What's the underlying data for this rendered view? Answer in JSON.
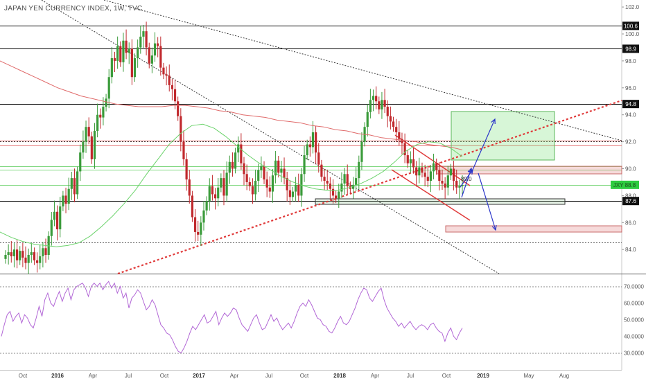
{
  "header": {
    "title": "JAPAN YEN CURRENCY INDEX, 1W, TVC"
  },
  "colors": {
    "up": "#3a9b3a",
    "down": "#c0282c",
    "ma_red": "#e06a6a",
    "ma_green": "#6bd36b",
    "rsi": "#b267d6",
    "trend_red": "#e03a3a",
    "arrow": "#2a35c9",
    "price_tag": "#2ecc40"
  },
  "chart_data": [
    {
      "type": "candlestick",
      "title": "JAPAN YEN CURRENCY INDEX, 1W, TVC",
      "ylim": [
        82.6,
        103.2
      ],
      "yticks": [
        "102.0",
        "100.0",
        "98.0",
        "96.0",
        "94.0",
        "92.0",
        "90.0",
        "88.0",
        "86.0",
        "84.0"
      ],
      "xticks": [
        "Oct",
        "2016",
        "Apr",
        "Jul",
        "Oct",
        "2017",
        "Apr",
        "Jul",
        "Oct",
        "2018",
        "Apr",
        "Jul",
        "Oct",
        "2019",
        "May",
        "Aug"
      ],
      "tags": [
        {
          "label": "100.6",
          "value": 100.6
        },
        {
          "label": "98.9",
          "value": 98.9
        },
        {
          "label": "94.8",
          "value": 94.8
        },
        {
          "label": "87.6",
          "value": 87.6
        }
      ],
      "price_tag": {
        "symbol": "JXY",
        "value": "88.8"
      },
      "price_tag_small": "89.0",
      "horizontal_levels": [
        100.6,
        98.9,
        94.8,
        87.6,
        84.5,
        92.1,
        91.7,
        90.2,
        89.9,
        88.8
      ],
      "candles_close": [
        83.6,
        83.8,
        83.5,
        84.0,
        83.2,
        83.9,
        83.4,
        83.0,
        83.6,
        83.8,
        83.2,
        83.0,
        83.5,
        84.1,
        83.6,
        85.0,
        86.2,
        86.8,
        85.5,
        87.2,
        88.0,
        87.4,
        88.5,
        89.3,
        88.1,
        89.8,
        91.2,
        92.0,
        93.1,
        92.4,
        90.7,
        92.8,
        94.0,
        93.8,
        94.6,
        95.2,
        96.8,
        98.2,
        98.0,
        99.1,
        97.9,
        99.5,
        98.6,
        98.9,
        96.8,
        98.2,
        99.0,
        99.8,
        100.2,
        99.0,
        97.8,
        98.4,
        99.3,
        99.1,
        97.5,
        97.0,
        96.9,
        96.2,
        95.9,
        95.0,
        93.9,
        92.0,
        90.7,
        89.2,
        88.0,
        86.4,
        85.3,
        85.1,
        86.0,
        86.9,
        87.6,
        88.7,
        88.1,
        87.8,
        88.6,
        89.3,
        88.0,
        89.7,
        90.5,
        90.0,
        91.2,
        91.8,
        90.4,
        89.6,
        89.0,
        88.7,
        88.1,
        89.1,
        89.9,
        90.2,
        89.2,
        88.6,
        88.3,
        89.5,
        90.6,
        89.7,
        90.0,
        89.3,
        88.4,
        87.9,
        88.3,
        88.8,
        88.0,
        89.6,
        91.0,
        91.8,
        91.6,
        92.7,
        91.2,
        90.3,
        89.4,
        89.1,
        88.9,
        88.5,
        88.0,
        87.8,
        88.3,
        88.9,
        89.6,
        88.7,
        88.5,
        88.8,
        89.3,
        90.5,
        92.0,
        93.1,
        94.2,
        95.1,
        95.4,
        95.0,
        94.4,
        95.1,
        94.6,
        93.9,
        93.5,
        93.1,
        92.7,
        92.2,
        91.9,
        91.0,
        90.4,
        90.7,
        90.1,
        89.5,
        90.1,
        89.7,
        89.4,
        89.1,
        89.8,
        90.4,
        89.9,
        89.1,
        88.9,
        88.6,
        89.5,
        90.0,
        89.1,
        88.6,
        88.7,
        88.8
      ],
      "ma200_close": [
        98.0,
        97.6,
        97.2,
        96.8,
        96.4,
        96.0,
        95.7,
        95.4,
        95.2,
        95.0,
        94.8,
        94.7,
        94.6,
        94.6,
        94.6,
        94.7,
        94.7,
        94.6,
        94.5,
        94.3,
        94.2,
        94.0,
        93.9,
        93.8,
        93.6,
        93.5,
        93.4,
        93.2,
        93.1,
        92.9,
        92.8,
        92.6,
        92.5,
        92.3,
        92.2,
        92.1,
        92.0,
        91.8,
        91.7,
        91.6,
        91.4
      ],
      "ma50_close": [
        85.3,
        84.9,
        84.6,
        84.4,
        84.3,
        84.2,
        84.3,
        84.5,
        85.0,
        85.7,
        86.5,
        87.4,
        88.4,
        89.6,
        90.7,
        91.8,
        92.6,
        93.2,
        93.3,
        93.0,
        92.4,
        91.7,
        91.0,
        90.4,
        89.9,
        89.4,
        89.0,
        88.7,
        88.5,
        88.4,
        88.4,
        88.6,
        88.9,
        89.3,
        89.8,
        90.5,
        91.3,
        91.8,
        92.0,
        91.9,
        91.5,
        90.9
      ],
      "rsi": {
        "yticks": [
          "70.0000",
          "60.0000",
          "50.0000",
          "40.0000",
          "30.0000"
        ],
        "levels": [
          70,
          30
        ],
        "values": [
          40,
          47,
          53,
          55,
          49,
          52,
          54,
          48,
          53,
          51,
          47,
          45,
          51,
          58,
          52,
          62,
          66,
          60,
          58,
          63,
          67,
          61,
          66,
          69,
          62,
          68,
          70,
          71,
          72,
          69,
          64,
          70,
          72,
          70,
          72,
          68,
          71,
          73,
          69,
          72,
          66,
          70,
          63,
          66,
          57,
          63,
          65,
          68,
          66,
          61,
          56,
          58,
          62,
          59,
          53,
          47,
          45,
          42,
          41,
          38,
          34,
          31,
          30,
          33,
          37,
          42,
          46,
          44,
          47,
          50,
          53,
          48,
          49,
          52,
          55,
          47,
          51,
          54,
          52,
          54,
          57,
          56,
          51,
          47,
          45,
          43,
          47,
          51,
          53,
          48,
          44,
          45,
          49,
          53,
          49,
          51,
          47,
          44,
          46,
          48,
          45,
          49,
          54,
          58,
          60,
          58,
          62,
          59,
          55,
          51,
          50,
          47,
          46,
          43,
          42,
          45,
          49,
          52,
          48,
          47,
          49,
          53,
          57,
          62,
          66,
          69,
          68,
          63,
          61,
          64,
          67,
          69,
          62,
          57,
          54,
          51,
          49,
          46,
          48,
          45,
          47,
          49,
          46,
          44,
          46,
          47,
          46,
          44,
          47,
          48,
          45,
          43,
          42,
          37,
          42,
          45,
          40,
          38,
          42,
          45
        ]
      }
    }
  ]
}
